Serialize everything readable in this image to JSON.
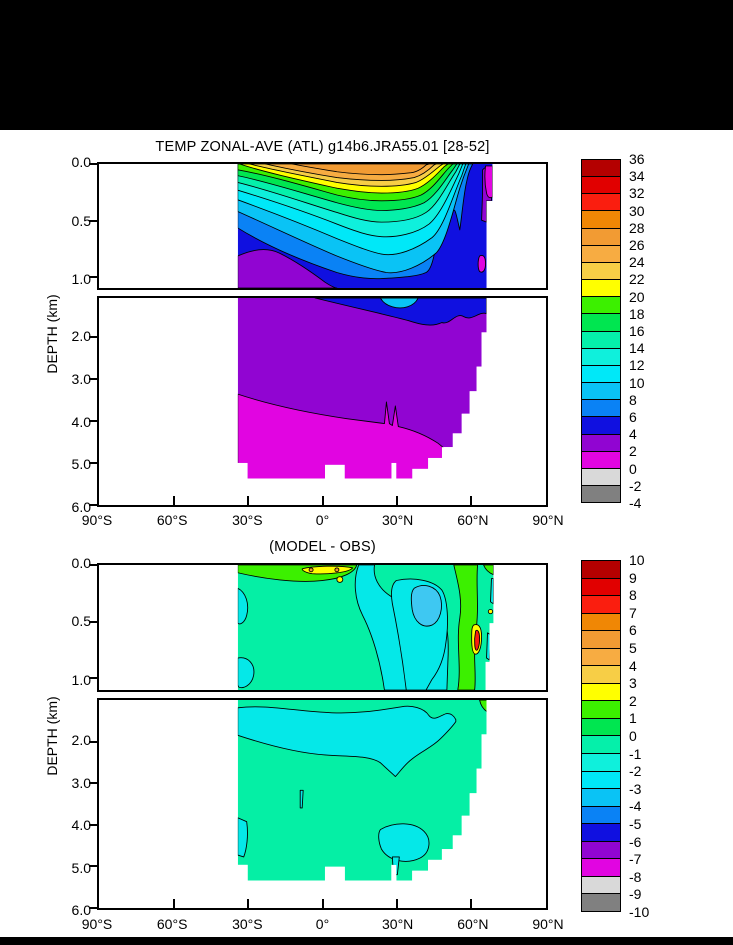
{
  "figure": {
    "background": "#FFFFFF",
    "band_color": "#000000",
    "panels": [
      {
        "title": "TEMP ZONAL-AVE (ATL) g14b6.JRA55.01 [28-52]",
        "ylabel": "DEPTH (km)",
        "y_ticks_upper": [
          "0.0",
          "0.5",
          "1.0"
        ],
        "y_ticks_lower": [
          "2.0",
          "3.0",
          "4.0",
          "5.0",
          "6.0"
        ],
        "x_ticks": [
          "90°S",
          "60°S",
          "30°S",
          "0°",
          "30°N",
          "60°N",
          "90°N"
        ],
        "colorbar": {
          "labels": [
            "36",
            "34",
            "32",
            "30",
            "28",
            "26",
            "24",
            "22",
            "20",
            "18",
            "16",
            "14",
            "12",
            "10",
            "8",
            "6",
            "4",
            "2",
            "0",
            "-2",
            "-4"
          ],
          "colors": [
            "#B40000",
            "#E10000",
            "#FA1E0F",
            "#F08705",
            "#F29B33",
            "#F7AC42",
            "#F7CE46",
            "#FFFF00",
            "#3CF000",
            "#00E650",
            "#05F0AA",
            "#0FF0DC",
            "#00E8F8",
            "#0AC3F5",
            "#0A82F5",
            "#1010E0",
            "#9105D2",
            "#E105E1",
            "#D9D9D9",
            "#808080"
          ],
          "stipple_index": 18
        }
      },
      {
        "title": "(MODEL - OBS)",
        "ylabel": "DEPTH (km)",
        "y_ticks_upper": [
          "0.0",
          "0.5",
          "1.0"
        ],
        "y_ticks_lower": [
          "2.0",
          "3.0",
          "4.0",
          "5.0",
          "6.0"
        ],
        "x_ticks": [
          "90°S",
          "60°S",
          "30°S",
          "0°",
          "30°N",
          "60°N",
          "90°N"
        ],
        "colorbar": {
          "labels": [
            "10",
            "9",
            "8",
            "7",
            "6",
            "5",
            "4",
            "3",
            "2",
            "1",
            "0",
            "-1",
            "-2",
            "-3",
            "-4",
            "-5",
            "-6",
            "-7",
            "-8",
            "-9",
            "-10"
          ],
          "colors": [
            "#B40000",
            "#E10000",
            "#FA1E0F",
            "#F08705",
            "#F29B33",
            "#F7AC42",
            "#F7CE46",
            "#FFFF00",
            "#3CF000",
            "#00E650",
            "#05F0AA",
            "#0FF0DC",
            "#00E8F8",
            "#0AC3F5",
            "#0A82F5",
            "#1010E0",
            "#9105D2",
            "#E105E1",
            "#D9D9D9",
            "#808080"
          ],
          "stipple_index": 18
        }
      }
    ]
  },
  "chart_data": [
    {
      "type": "heatmap",
      "subtype": "filled_contour_latitude_depth_section",
      "title": "TEMP ZONAL-AVE (ATL) g14b6.JRA55.01 [28-52]",
      "variable": "Temperature, zonal average over Atlantic basin",
      "units": "degC",
      "xlabel": "latitude",
      "ylabel": "DEPTH (km)",
      "x_ticks": [
        -90,
        -60,
        -30,
        0,
        30,
        60,
        90
      ],
      "y_axis_split_km": 1.1,
      "y_range_km": [
        0,
        6
      ],
      "data_latitude_range": [
        -34,
        70
      ],
      "max_data_depth_km": 5.4,
      "contour_levels_min": -4,
      "contour_levels_max": 36,
      "contour_interval": 2,
      "legend_position": "right",
      "grid": false,
      "palette": [
        "#B40000",
        "#E10000",
        "#FA1E0F",
        "#F08705",
        "#F29B33",
        "#F7AC42",
        "#F7CE46",
        "#FFFF00",
        "#3CF000",
        "#00E650",
        "#05F0AA",
        "#0FF0DC",
        "#00E8F8",
        "#0AC3F5",
        "#0A82F5",
        "#1010E0",
        "#9105D2",
        "#E105E1",
        "#D9D9D9",
        "#808080"
      ],
      "lats": [
        -30,
        -20,
        -10,
        0,
        10,
        20,
        30,
        40,
        50,
        60,
        65
      ],
      "depths_km": [
        0,
        0.1,
        0.3,
        0.5,
        0.8,
        1.0,
        1.5,
        2.0,
        3.0,
        4.0,
        5.0
      ],
      "values": [
        [
          22,
          25,
          27,
          27,
          27,
          26,
          24,
          18,
          10,
          5,
          1
        ],
        [
          19,
          20,
          19,
          17,
          16,
          20,
          20,
          15,
          9,
          5,
          1
        ],
        [
          14,
          14,
          12,
          11,
          11,
          14,
          16,
          12,
          8,
          5,
          1
        ],
        [
          11,
          10,
          8,
          7,
          7,
          10,
          13,
          10,
          7,
          5,
          2
        ],
        [
          8,
          6,
          5,
          5,
          5,
          6,
          9,
          7,
          6,
          4,
          2
        ],
        [
          6,
          5,
          4.5,
          4.5,
          4.5,
          5,
          7,
          6,
          5,
          4,
          2
        ],
        [
          4.5,
          4.5,
          4.5,
          4.5,
          4.5,
          5,
          5.5,
          5,
          4.5,
          3.5,
          1.5
        ],
        [
          3.5,
          3.5,
          3.5,
          3.5,
          3.5,
          3.5,
          4,
          4,
          3.5,
          3,
          1.5
        ],
        [
          2.8,
          3,
          3,
          3,
          3,
          3,
          3,
          3,
          3,
          2.8,
          null
        ],
        [
          1.8,
          1.8,
          2,
          2.2,
          2.4,
          2.5,
          2.6,
          2.8,
          2.8,
          null,
          null
        ],
        [
          0.8,
          1,
          1.2,
          1.5,
          1.8,
          1.9,
          null,
          null,
          null,
          null,
          null
        ]
      ]
    },
    {
      "type": "heatmap",
      "subtype": "filled_contour_latitude_depth_section",
      "title": "(MODEL - OBS)",
      "variable": "Temperature difference, model minus observations, Atlantic zonal average",
      "units": "degC",
      "xlabel": "latitude",
      "ylabel": "DEPTH (km)",
      "x_ticks": [
        -90,
        -60,
        -30,
        0,
        30,
        60,
        90
      ],
      "y_axis_split_km": 1.1,
      "y_range_km": [
        0,
        6
      ],
      "data_latitude_range": [
        -34,
        70
      ],
      "max_data_depth_km": 5.4,
      "contour_levels_min": -10,
      "contour_levels_max": 10,
      "contour_interval": 1,
      "legend_position": "right",
      "grid": false,
      "palette": [
        "#B40000",
        "#E10000",
        "#FA1E0F",
        "#F08705",
        "#F29B33",
        "#F7AC42",
        "#F7CE46",
        "#FFFF00",
        "#3CF000",
        "#00E650",
        "#05F0AA",
        "#0FF0DC",
        "#00E8F8",
        "#0AC3F5",
        "#0A82F5",
        "#1010E0",
        "#9105D2",
        "#E105E1",
        "#D9D9D9",
        "#808080"
      ],
      "lats": [
        -30,
        -20,
        -10,
        0,
        10,
        20,
        30,
        40,
        50,
        60,
        65
      ],
      "depths_km": [
        0,
        0.2,
        0.5,
        1.0,
        1.5,
        2.5,
        4.5
      ],
      "values": [
        [
          1.5,
          2,
          2.5,
          1.5,
          0.5,
          0.2,
          -0.5,
          0.5,
          1,
          1.5,
          0.5
        ],
        [
          0.5,
          0.8,
          0.5,
          0.3,
          -0.5,
          -1,
          -1.5,
          -2.5,
          0.5,
          1.5,
          0.5
        ],
        [
          0.3,
          0.5,
          0.5,
          -0.5,
          -1,
          -1.2,
          -1.8,
          -2.2,
          0.8,
          1.8,
          3.5
        ],
        [
          0.5,
          0.5,
          0.3,
          -0.5,
          -1,
          -1,
          -1.5,
          -1.2,
          0.5,
          1.5,
          1
        ],
        [
          -0.5,
          -0.3,
          -0.5,
          -0.8,
          -0.8,
          -0.5,
          -0.8,
          -0.5,
          0.3,
          0.8,
          null
        ],
        [
          0.3,
          0.5,
          0.5,
          0.5,
          0.5,
          0.5,
          0.3,
          0.5,
          0.5,
          0.5,
          null
        ],
        [
          0.5,
          0.5,
          0.5,
          0.5,
          -0.5,
          -0.7,
          -0.5,
          0.5,
          null,
          null,
          null
        ]
      ]
    }
  ]
}
